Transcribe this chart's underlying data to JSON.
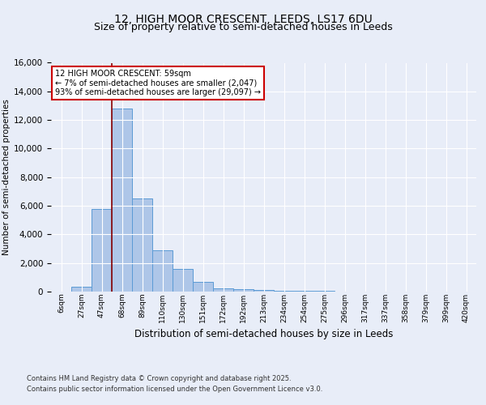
{
  "title1": "12, HIGH MOOR CRESCENT, LEEDS, LS17 6DU",
  "title2": "Size of property relative to semi-detached houses in Leeds",
  "xlabel": "Distribution of semi-detached houses by size in Leeds",
  "ylabel": "Number of semi-detached properties",
  "categories": [
    "6sqm",
    "27sqm",
    "47sqm",
    "68sqm",
    "89sqm",
    "110sqm",
    "130sqm",
    "151sqm",
    "172sqm",
    "192sqm",
    "213sqm",
    "234sqm",
    "254sqm",
    "275sqm",
    "296sqm",
    "317sqm",
    "337sqm",
    "358sqm",
    "379sqm",
    "399sqm",
    "420sqm"
  ],
  "values": [
    0,
    350,
    5800,
    12800,
    6500,
    2900,
    1600,
    700,
    200,
    150,
    100,
    50,
    50,
    30,
    20,
    10,
    10,
    5,
    5,
    5,
    0
  ],
  "bar_color": "#aec6e8",
  "bar_edge_color": "#5b9bd5",
  "vline_x_index": 2.5,
  "vline_color": "#8b0000",
  "annotation_title": "12 HIGH MOOR CRESCENT: 59sqm",
  "annotation_line1": "← 7% of semi-detached houses are smaller (2,047)",
  "annotation_line2": "93% of semi-detached houses are larger (29,097) →",
  "annotation_box_color": "#ffffff",
  "annotation_box_edge": "#cc0000",
  "footer1": "Contains HM Land Registry data © Crown copyright and database right 2025.",
  "footer2": "Contains public sector information licensed under the Open Government Licence v3.0.",
  "ylim": [
    0,
    16000
  ],
  "yticks": [
    0,
    2000,
    4000,
    6000,
    8000,
    10000,
    12000,
    14000,
    16000
  ],
  "bg_color": "#e8edf8",
  "grid_color": "#ffffff",
  "title_fontsize": 10,
  "subtitle_fontsize": 9
}
